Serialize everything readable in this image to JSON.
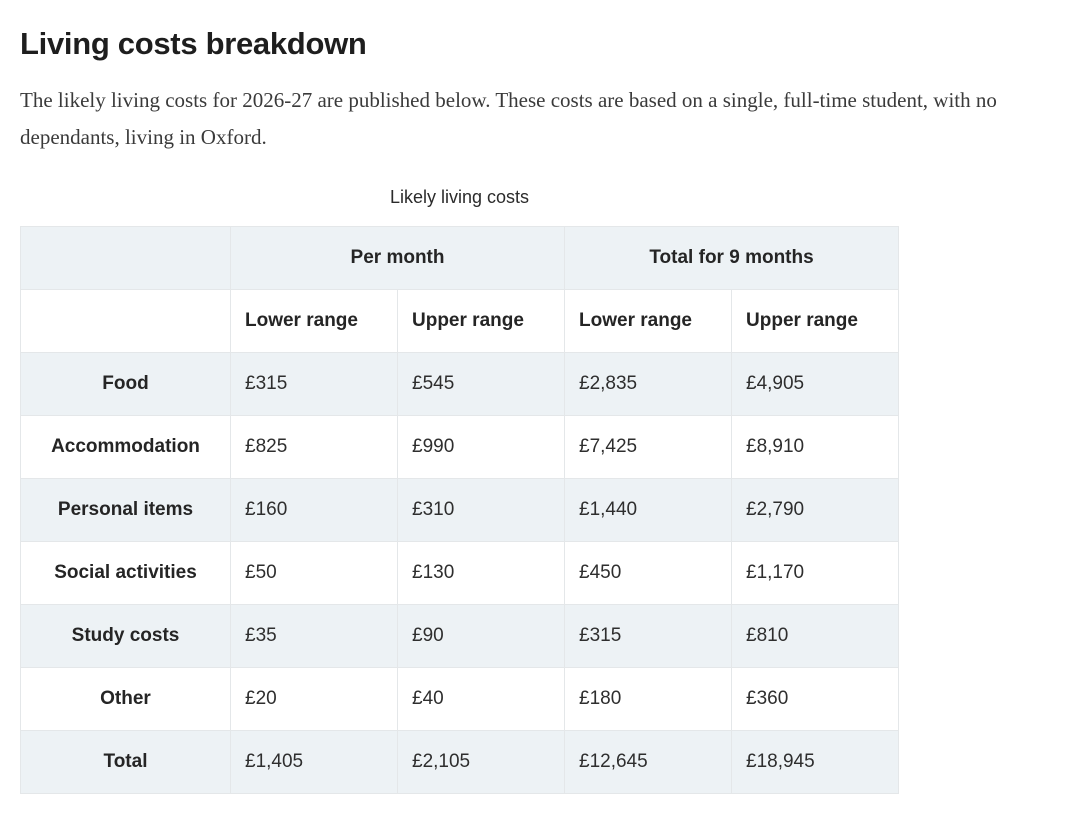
{
  "page": {
    "title": "Living costs breakdown",
    "intro": "The likely living costs for 2026-27 are published below. These costs are based on a single, full-time student, with no dependants, living in Oxford."
  },
  "table": {
    "caption": "Likely living costs",
    "column_groups": [
      "Per month",
      "Total for 9 months"
    ],
    "sub_headers": [
      "Lower range",
      "Upper range",
      "Lower range",
      "Upper range"
    ],
    "rows": [
      {
        "label": "Food",
        "values": [
          "£315",
          "£545",
          "£2,835",
          "£4,905"
        ]
      },
      {
        "label": "Accommodation",
        "values": [
          "£825",
          "£990",
          "£7,425",
          "£8,910"
        ]
      },
      {
        "label": "Personal items",
        "values": [
          "£160",
          "£310",
          "£1,440",
          "£2,790"
        ]
      },
      {
        "label": "Social activities",
        "values": [
          "£50",
          "£130",
          "£450",
          "£1,170"
        ]
      },
      {
        "label": "Study costs",
        "values": [
          "£35",
          "£90",
          "£315",
          "£810"
        ]
      },
      {
        "label": "Other",
        "values": [
          "£20",
          "£40",
          "£180",
          "£360"
        ]
      },
      {
        "label": "Total",
        "values": [
          "£1,405",
          "£2,105",
          "£12,645",
          "£18,945"
        ]
      }
    ],
    "colors": {
      "row_shade": "#edf2f5",
      "border": "#e4e7e9",
      "heading_text": "#1e1e1e",
      "body_text": "#3a3a3a"
    }
  }
}
